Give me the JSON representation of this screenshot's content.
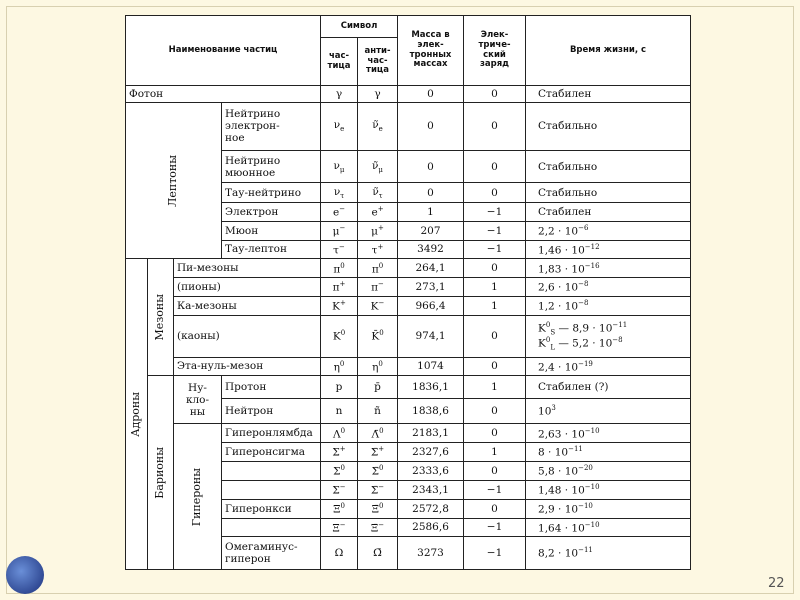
{
  "header": {
    "name": "Наименование частиц",
    "symbol": "Символ",
    "particle": "час-\nтица",
    "antiparticle": "анти-\nчас-\nтица",
    "mass": "Масса в\nэлек-\nтронных\nмассах",
    "charge": "Элек-\nтриче-\nский\nзаряд",
    "lifetime": "Время жизни, с"
  },
  "groups": {
    "leptons": "Лептоны",
    "hadrons": "Адроны",
    "mesons": "Мезоны",
    "baryons": "Барионы",
    "nucleons": "Ну-\nкло-\nны",
    "hyperons": "Гипероны"
  },
  "rows": [
    [
      "Фотон",
      "γ",
      "γ",
      "0",
      "0",
      "Стабилен"
    ],
    [
      "Нейтрино электрон-\nное",
      [
        {
          "t": "ν"
        },
        {
          "sub": "e"
        }
      ],
      [
        {
          "t": "ν̃"
        },
        {
          "sub": "e"
        }
      ],
      "0",
      "0",
      "Стабильно"
    ],
    [
      "Нейтрино мюонное",
      [
        {
          "t": "ν"
        },
        {
          "sub": "μ"
        }
      ],
      [
        {
          "t": "ν̃"
        },
        {
          "sub": "μ"
        }
      ],
      "0",
      "0",
      "Стабильно"
    ],
    [
      "Тау-нейтрино",
      [
        {
          "t": "ν"
        },
        {
          "sub": "τ"
        }
      ],
      [
        {
          "t": "ν̃"
        },
        {
          "sub": "τ"
        }
      ],
      "0",
      "0",
      "Стабильно"
    ],
    [
      "Электрон",
      [
        {
          "t": "e"
        },
        {
          "sup": "−"
        }
      ],
      [
        {
          "t": "e"
        },
        {
          "sup": "+"
        }
      ],
      "1",
      "−1",
      "Стабилен"
    ],
    [
      "Мюон",
      [
        {
          "t": "μ"
        },
        {
          "sup": "−"
        }
      ],
      [
        {
          "t": "μ"
        },
        {
          "sup": "+"
        }
      ],
      "207",
      "−1",
      [
        {
          "t": "2,2 · 10"
        },
        {
          "sup": "−6"
        }
      ]
    ],
    [
      "Тау-лептон",
      [
        {
          "t": "τ"
        },
        {
          "sup": "−"
        }
      ],
      [
        {
          "t": "τ"
        },
        {
          "sup": "+"
        }
      ],
      "3492",
      "−1",
      [
        {
          "t": "1,46 · 10"
        },
        {
          "sup": "−12"
        }
      ]
    ],
    [
      "Пи-мезоны",
      [
        {
          "t": "π"
        },
        {
          "sup": "0"
        }
      ],
      [
        {
          "t": "π"
        },
        {
          "sup": "0"
        }
      ],
      "264,1",
      "0",
      [
        {
          "t": "1,83 · 10"
        },
        {
          "sup": "−16"
        }
      ]
    ],
    [
      "(пионы)",
      [
        {
          "t": "π"
        },
        {
          "sup": "+"
        }
      ],
      [
        {
          "t": "π"
        },
        {
          "sup": "−"
        }
      ],
      "273,1",
      "1",
      [
        {
          "t": "2,6 · 10"
        },
        {
          "sup": "−8"
        }
      ]
    ],
    [
      "Ка-мезоны",
      [
        {
          "t": "K"
        },
        {
          "sup": "+"
        }
      ],
      [
        {
          "t": "K"
        },
        {
          "sup": "−"
        }
      ],
      "966,4",
      "1",
      [
        {
          "t": "1,2 · 10"
        },
        {
          "sup": "−8"
        }
      ]
    ],
    [
      "(каоны)",
      [
        {
          "t": "K"
        },
        {
          "sup": "0"
        }
      ],
      [
        {
          "t": "K̄"
        },
        {
          "sup": "0"
        }
      ],
      "974,1",
      "0",
      [
        [
          {
            "t": "K"
          },
          {
            "sup": "0"
          },
          {
            "sub": "S"
          },
          {
            "t": " — 8,9 · 10"
          },
          {
            "sup": "−11"
          }
        ],
        [
          {
            "t": "K"
          },
          {
            "sup": "0"
          },
          {
            "sub": "L"
          },
          {
            "t": " — 5,2 · 10"
          },
          {
            "sup": "−8"
          }
        ]
      ]
    ],
    [
      "Эта-нуль-мезон",
      [
        {
          "t": "η"
        },
        {
          "sup": "0"
        }
      ],
      [
        {
          "t": "η"
        },
        {
          "sup": "0"
        }
      ],
      "1074",
      "0",
      [
        {
          "t": "2,4 · 10"
        },
        {
          "sup": "−19"
        }
      ]
    ],
    [
      "Протон",
      "p",
      "p̄",
      "1836,1",
      "1",
      "Стабилен (?)"
    ],
    [
      "Нейтрон",
      "n",
      "ñ",
      "1838,6",
      "0",
      [
        {
          "t": "10"
        },
        {
          "sup": "3"
        }
      ]
    ],
    [
      "Гиперонлямбда",
      [
        {
          "t": "Λ"
        },
        {
          "sup": "0"
        }
      ],
      [
        {
          "t": "Λ̄"
        },
        {
          "sup": "0"
        }
      ],
      "2183,1",
      "0",
      [
        {
          "t": "2,63 · 10"
        },
        {
          "sup": "−10"
        }
      ]
    ],
    [
      "Гиперонсигма",
      [
        {
          "t": "Σ"
        },
        {
          "sup": "+"
        }
      ],
      [
        {
          "t": "Σ̄"
        },
        {
          "sup": "+"
        }
      ],
      "2327,6",
      "1",
      [
        {
          "t": "8 · 10"
        },
        {
          "sup": "−11"
        }
      ]
    ],
    [
      null,
      [
        {
          "t": "Σ"
        },
        {
          "sup": "0"
        }
      ],
      [
        {
          "t": "Σ̄"
        },
        {
          "sup": "0"
        }
      ],
      "2333,6",
      "0",
      [
        {
          "t": "5,8 · 10"
        },
        {
          "sup": "−20"
        }
      ]
    ],
    [
      null,
      [
        {
          "t": "Σ"
        },
        {
          "sup": "−"
        }
      ],
      [
        {
          "t": "Σ̄"
        },
        {
          "sup": "−"
        }
      ],
      "2343,1",
      "−1",
      [
        {
          "t": "1,48 · 10"
        },
        {
          "sup": "−10"
        }
      ]
    ],
    [
      "Гиперонкси",
      [
        {
          "t": "Ξ"
        },
        {
          "sup": "0"
        }
      ],
      [
        {
          "t": "Ξ̄"
        },
        {
          "sup": "0"
        }
      ],
      "2572,8",
      "0",
      [
        {
          "t": "2,9 · 10"
        },
        {
          "sup": "−10"
        }
      ]
    ],
    [
      null,
      [
        {
          "t": "Ξ"
        },
        {
          "sup": "−"
        }
      ],
      [
        {
          "t": "Ξ̄"
        },
        {
          "sup": "−"
        }
      ],
      "2586,6",
      "−1",
      [
        {
          "t": "1,64 · 10"
        },
        {
          "sup": "−10"
        }
      ]
    ],
    [
      "Омегаминус-\nгиперон",
      "Ω",
      "Ω̄",
      "3273",
      "−1",
      [
        {
          "t": "8,2 · 10"
        },
        {
          "sup": "−11"
        }
      ]
    ]
  ],
  "page_number": "22"
}
